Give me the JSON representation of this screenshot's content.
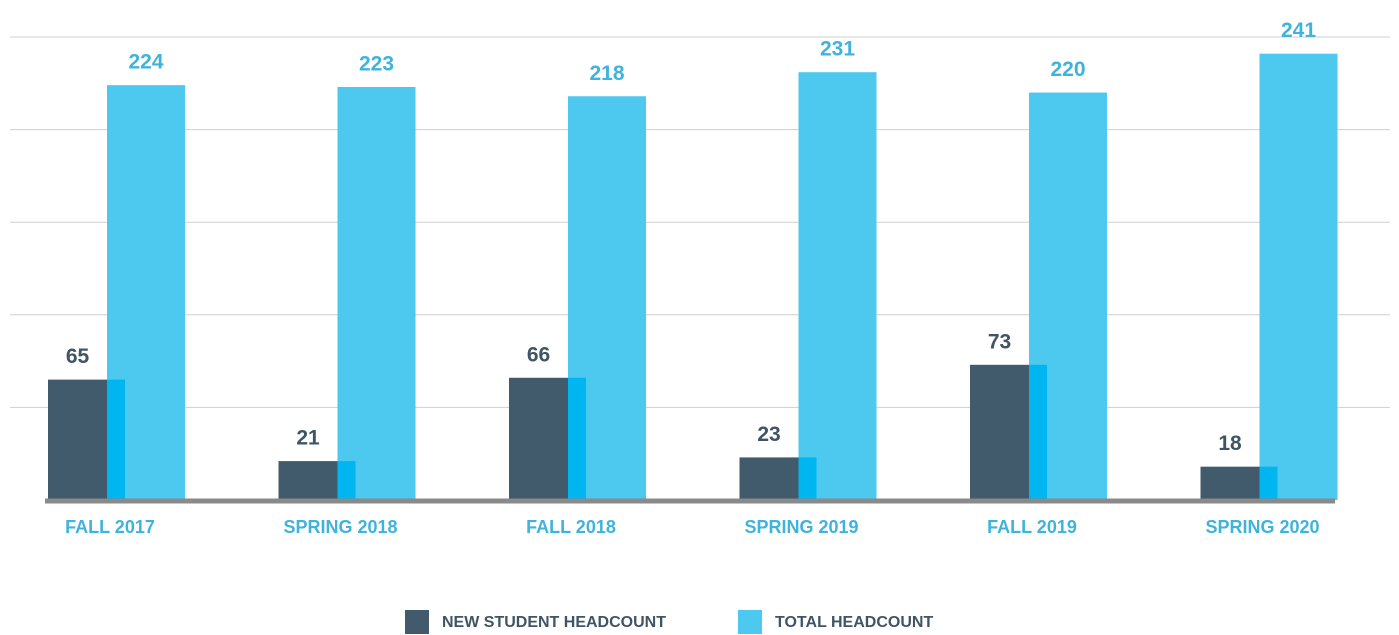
{
  "chart_data": {
    "type": "bar",
    "categories": [
      "FALL 2017",
      "SPRING 2018",
      "FALL 2018",
      "SPRING 2019",
      "FALL 2019",
      "SPRING 2020"
    ],
    "series": [
      {
        "name": "NEW STUDENT HEADCOUNT",
        "color": "#425b6c",
        "values": [
          65,
          21,
          66,
          23,
          73,
          18
        ]
      },
      {
        "name": "TOTAL HEADCOUNT",
        "color": "#4dc8ee",
        "values": [
          224,
          223,
          218,
          231,
          220,
          241
        ]
      }
    ],
    "ylim": [
      0,
      250
    ],
    "yticks": [
      0,
      50,
      100,
      150,
      200,
      250
    ],
    "grid": true
  }
}
